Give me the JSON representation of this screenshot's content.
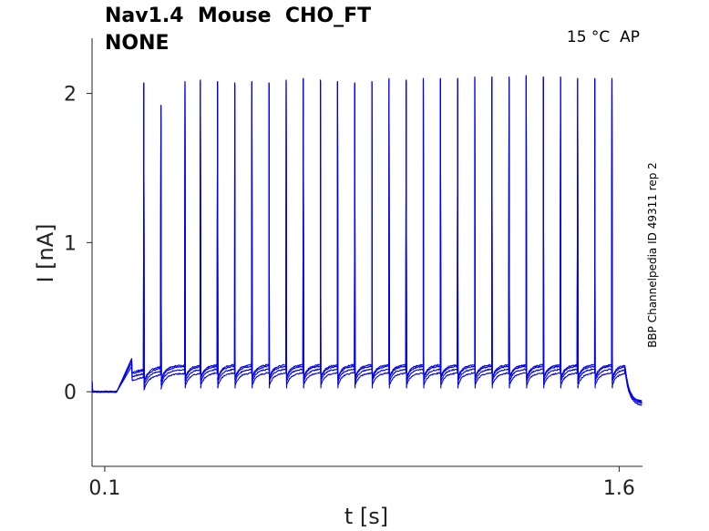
{
  "title_line1": "Nav1.4  Mouse  CHO_FT",
  "title_line2": "NONE",
  "condition_label": "15 °C  AP",
  "side_label": "BBP Channelpedia ID 49311 rep 2",
  "colors": {
    "trace": "#0000ee",
    "axis": "#222222"
  },
  "chart_data": {
    "type": "line",
    "xlabel": "t [s]",
    "ylabel": "I [nA]",
    "xticks": [
      0.1,
      1.6
    ],
    "xtick_labels": [
      "0.1",
      "1.6"
    ],
    "yticks": [
      0,
      1,
      2
    ],
    "ytick_labels": [
      "0",
      "1",
      "2"
    ],
    "xlim": [
      0.063,
      1.668
    ],
    "ylim": [
      -0.5,
      2.37
    ],
    "grid": false,
    "stimulus": {
      "start": 0.18,
      "end": 1.617
    },
    "spike_times": [
      0.214,
      0.264,
      0.334,
      0.379,
      0.429,
      0.479,
      0.529,
      0.579,
      0.629,
      0.679,
      0.729,
      0.779,
      0.829,
      0.879,
      0.929,
      0.979,
      1.029,
      1.079,
      1.129,
      1.179,
      1.229,
      1.279,
      1.329,
      1.379,
      1.429,
      1.479,
      1.529,
      1.579
    ],
    "spike_peaks": [
      2.07,
      1.92,
      2.08,
      2.09,
      2.08,
      2.07,
      2.08,
      2.07,
      2.09,
      2.1,
      2.09,
      2.08,
      2.07,
      2.08,
      2.1,
      2.09,
      2.1,
      2.1,
      2.1,
      2.11,
      2.11,
      2.11,
      2.12,
      2.11,
      2.11,
      2.1,
      2.1,
      2.1
    ],
    "baseline_pre": 0.0,
    "plateau": 0.17,
    "baseline_post": -0.07,
    "series": [
      {
        "offset": 0.0
      },
      {
        "offset": -0.02
      },
      {
        "offset": -0.045
      },
      {
        "offset": 0.01
      }
    ]
  }
}
